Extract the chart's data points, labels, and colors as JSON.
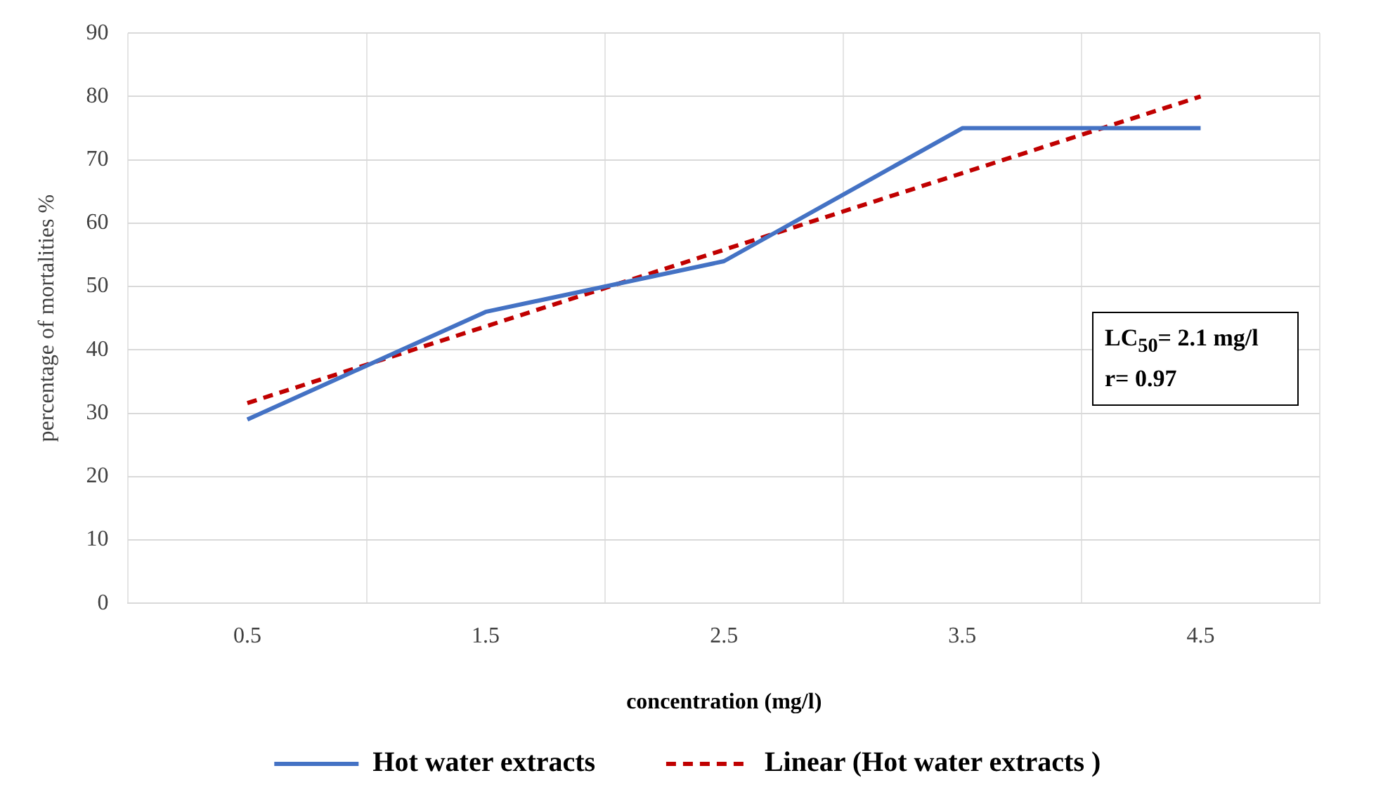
{
  "chart_data": {
    "type": "line",
    "xlabel": "concentration (mg/l)",
    "ylabel": "percentage of mortalities %",
    "categories": [
      "0.5",
      "1.5",
      "2.5",
      "3.5",
      "4.5"
    ],
    "series": [
      {
        "name": "Hot water extracts",
        "color": "#4472c4",
        "values": [
          29,
          46,
          54,
          75,
          75
        ],
        "line_style": "solid"
      },
      {
        "name": "Linear (Hot water extracts )",
        "color": "#c00000",
        "values": [
          31.6,
          43.7,
          55.8,
          67.9,
          80
        ],
        "line_style": "dashed"
      }
    ],
    "ylim": [
      0,
      90
    ],
    "yticks": [
      0,
      10,
      20,
      30,
      40,
      50,
      60,
      70,
      80,
      90
    ],
    "grid": true,
    "legend": "bottom",
    "marker": "none",
    "annotations": [
      "LC$_{50}$= 2.1 mg/l",
      "r= 0.97"
    ]
  }
}
